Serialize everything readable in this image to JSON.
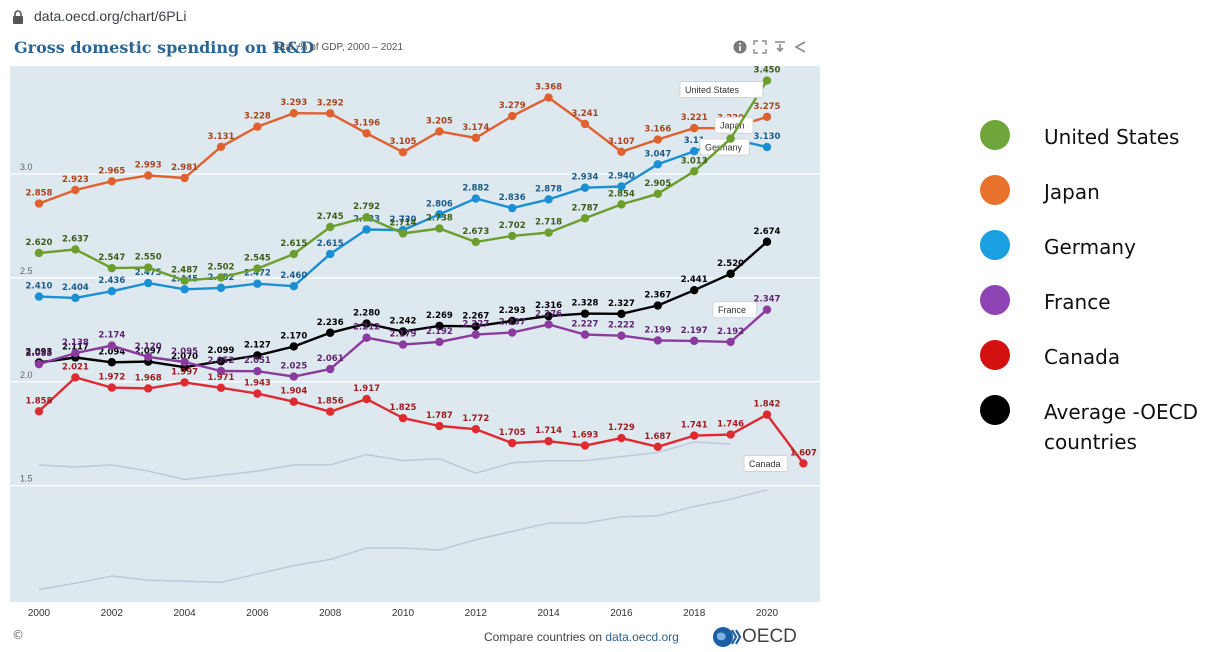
{
  "url": "data.oecd.org/chart/6PLi",
  "header": {
    "title": "Gross domestic spending on R&D",
    "subtitle": "Total, % of GDP, 2000 – 2021",
    "icons": [
      "info-icon",
      "fullscreen-icon",
      "download-icon",
      "share-icon"
    ]
  },
  "footer": {
    "copyright": "©",
    "compare_text": "Compare countries on ",
    "compare_link": "data.oecd.org",
    "logo_text": "OECD"
  },
  "legend": [
    {
      "label": "United States",
      "color": "#6ea63b"
    },
    {
      "label": "Japan",
      "color": "#e8722c"
    },
    {
      "label": "Germany",
      "color": "#1a9fe0"
    },
    {
      "label": "France",
      "color": "#8e44b5"
    },
    {
      "label": "Canada",
      "color": "#d41111"
    },
    {
      "label": "Average -OECD countries",
      "color": "#000000"
    }
  ],
  "chart_data": {
    "type": "line",
    "title": "Gross domestic spending on R&D",
    "subtitle": "Total, % of GDP, 2000 – 2021",
    "x": [
      2000,
      2001,
      2002,
      2003,
      2004,
      2005,
      2006,
      2007,
      2008,
      2009,
      2010,
      2011,
      2012,
      2013,
      2014,
      2015,
      2016,
      2017,
      2018,
      2019,
      2020,
      2021
    ],
    "x_ticks": [
      "2000",
      "2002",
      "2004",
      "2006",
      "2008",
      "2010",
      "2012",
      "2014",
      "2016",
      "2018",
      "2020"
    ],
    "y_ticks": [
      "1.5",
      "2.0",
      "2.5",
      "3.0"
    ],
    "ylim": [
      0.94,
      3.52
    ],
    "grid": true,
    "series": [
      {
        "name": "Japan",
        "color": "#e0612f",
        "labelColor": "#a8441c",
        "values": [
          2.858,
          2.923,
          2.965,
          2.993,
          2.981,
          3.131,
          3.228,
          3.293,
          3.292,
          3.196,
          3.105,
          3.205,
          3.174,
          3.279,
          3.368,
          3.241,
          3.107,
          3.166,
          3.221,
          3.22,
          3.275,
          null
        ],
        "labels": [
          "2.858",
          "2.923",
          "2.965",
          "2.993",
          "2.981",
          "3.131",
          "3.228",
          "3.293",
          "3.292",
          "3.196",
          "3.105",
          "3.205",
          "3.174",
          "3.279",
          "3.368",
          "3.241",
          "3.107",
          "3.166",
          "3.221",
          "3.220",
          "3.275",
          ""
        ],
        "endLabel": "Japan"
      },
      {
        "name": "Germany",
        "color": "#1b8fd4",
        "labelColor": "#1a5c8a",
        "values": [
          2.41,
          2.404,
          2.436,
          2.475,
          2.445,
          2.452,
          2.472,
          2.46,
          2.615,
          2.733,
          2.73,
          2.806,
          2.882,
          2.836,
          2.878,
          2.934,
          2.94,
          3.047,
          3.11,
          3.17,
          3.13,
          null
        ],
        "labels": [
          "2.410",
          "2.404",
          "2.436",
          "2.475",
          "2.445",
          "2.452",
          "2.472",
          "2.460",
          "2.615",
          "2.733",
          "2.730",
          "2.806",
          "2.882",
          "2.836",
          "2.878",
          "2.934",
          "2.940",
          "3.047",
          "3.11",
          "",
          "3.130",
          ""
        ],
        "endLabel": "Germany"
      },
      {
        "name": "United States",
        "color": "#6c9e2e",
        "labelColor": "#3c5d17",
        "values": [
          2.62,
          2.637,
          2.547,
          2.55,
          2.487,
          2.502,
          2.545,
          2.615,
          2.745,
          2.792,
          2.714,
          2.738,
          2.673,
          2.702,
          2.718,
          2.787,
          2.854,
          2.905,
          3.013,
          3.17,
          3.45,
          null
        ],
        "labels": [
          "2.620",
          "2.637",
          "2.547",
          "2.550",
          "2.487",
          "2.502",
          "2.545",
          "2.615",
          "2.745",
          "2.792",
          "2.714",
          "2.738",
          "2.673",
          "2.702",
          "2.718",
          "2.787",
          "2.854",
          "2.905",
          "3.013",
          "",
          "3.450",
          ""
        ],
        "endLabel": "United States"
      },
      {
        "name": "Average -OECD countries",
        "color": "#000000",
        "labelColor": "#000000",
        "values": [
          2.093,
          2.117,
          2.094,
          2.097,
          2.07,
          2.099,
          2.127,
          2.17,
          2.236,
          2.28,
          2.242,
          2.269,
          2.267,
          2.293,
          2.316,
          2.328,
          2.327,
          2.367,
          2.441,
          2.52,
          2.674,
          null
        ],
        "labels": [
          "2.093",
          "2.117",
          "2.094",
          "2.097",
          "2.070",
          "2.099",
          "2.127",
          "2.170",
          "2.236",
          "2.280",
          "2.242",
          "2.269",
          "2.267",
          "2.293",
          "2.316",
          "2.328",
          "2.327",
          "2.367",
          "2.441",
          "2.520",
          "2.674",
          ""
        ],
        "endLabel": ""
      },
      {
        "name": "France",
        "color": "#8b3a9e",
        "labelColor": "#5e2570",
        "values": [
          2.085,
          2.138,
          2.174,
          2.12,
          2.095,
          2.052,
          2.051,
          2.025,
          2.061,
          2.212,
          2.179,
          2.192,
          2.227,
          2.237,
          2.276,
          2.227,
          2.222,
          2.199,
          2.197,
          2.192,
          2.347,
          null
        ],
        "labels": [
          "2.085",
          "2.138",
          "2.174",
          "2.120",
          "2.095",
          "2.052",
          "2.051",
          "2.025",
          "2.061",
          "2.212",
          "2.179",
          "2.192",
          "2.227",
          "2.237",
          "2.276",
          "2.227",
          "2.222",
          "2.199",
          "2.197",
          "2.192",
          "2.347",
          ""
        ],
        "endLabel": "France"
      },
      {
        "name": "Canada",
        "color": "#dd2b31",
        "labelColor": "#9e1b1f",
        "values": [
          1.858,
          2.021,
          1.972,
          1.968,
          1.997,
          1.971,
          1.943,
          1.904,
          1.856,
          1.917,
          1.825,
          1.787,
          1.772,
          1.705,
          1.714,
          1.693,
          1.729,
          1.687,
          1.741,
          1.746,
          1.842,
          1.607
        ],
        "labels": [
          "1.858",
          "2.021",
          "1.972",
          "1.968",
          "1.997",
          "1.971",
          "1.943",
          "1.904",
          "1.856",
          "1.917",
          "1.825",
          "1.787",
          "1.772",
          "1.705",
          "1.714",
          "1.693",
          "1.729",
          "1.687",
          "1.741",
          "1.746",
          "1.842",
          "1.607"
        ],
        "endLabel": "Canada"
      },
      {
        "name": "",
        "color": "#b9c9d8",
        "labelColor": "",
        "values": [
          1.6,
          1.59,
          1.6,
          1.57,
          1.53,
          1.55,
          1.57,
          1.6,
          1.6,
          1.65,
          1.62,
          1.63,
          1.56,
          1.61,
          1.62,
          1.62,
          1.64,
          1.66,
          1.71,
          1.7,
          null,
          null
        ],
        "labels": [],
        "endLabel": ""
      },
      {
        "name": "",
        "color": "#b9c9d8",
        "labelColor": "",
        "values": [
          1.0,
          1.03,
          1.065,
          1.045,
          1.04,
          1.035,
          1.075,
          1.115,
          1.145,
          1.2,
          1.2,
          1.19,
          1.24,
          1.28,
          1.32,
          1.32,
          1.35,
          1.355,
          1.4,
          1.435,
          1.48,
          null
        ],
        "labels": [],
        "endLabel": ""
      }
    ]
  }
}
